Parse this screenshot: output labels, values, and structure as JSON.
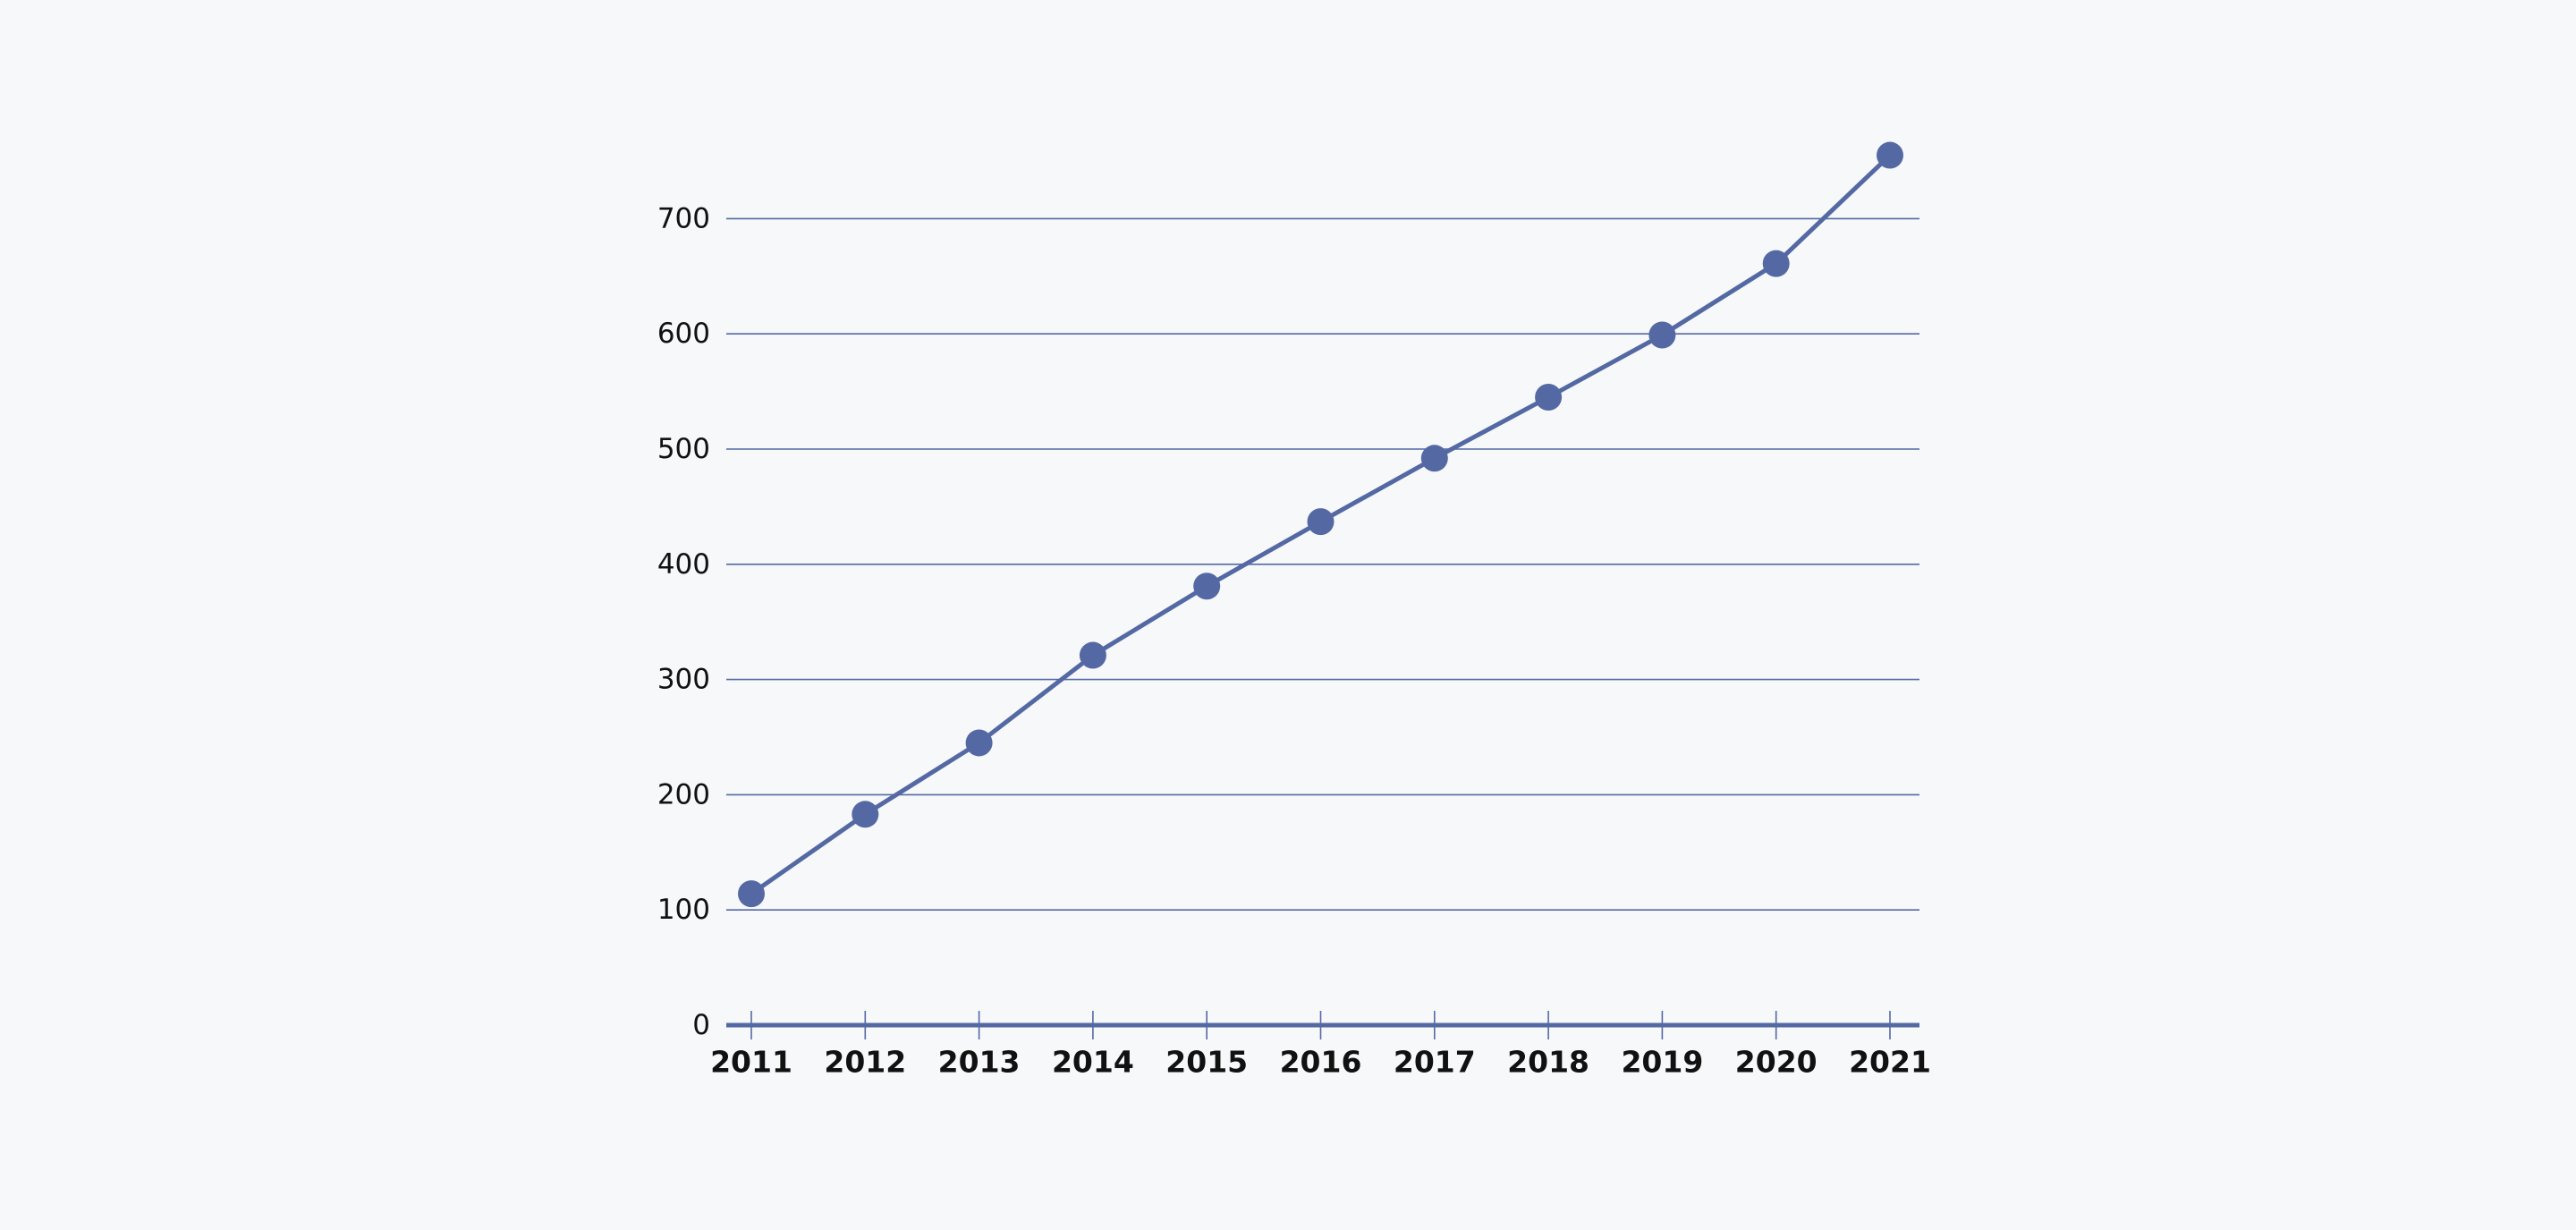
{
  "chart_data": {
    "type": "line",
    "title": "",
    "xlabel": "",
    "ylabel": "",
    "x": [
      "2011",
      "2012",
      "2013",
      "2014",
      "2015",
      "2016",
      "2017",
      "2018",
      "2019",
      "2020",
      "2021"
    ],
    "series": [
      {
        "values": [
          114,
          183,
          245,
          321,
          381,
          437,
          492,
          545,
          599,
          661,
          755
        ]
      }
    ],
    "ylim": [
      0,
      750
    ],
    "y_ticks": [
      "0",
      "100",
      "200",
      "300",
      "400",
      "500",
      "600",
      "700"
    ],
    "grid": true,
    "legend": "none",
    "colors": {
      "series": "#5469a4",
      "gridline": "#5469a4",
      "axis": "#5469a4",
      "background": "#f7f8fa",
      "text": "#111111"
    }
  }
}
